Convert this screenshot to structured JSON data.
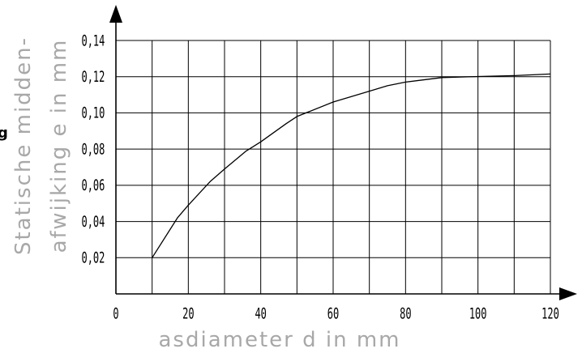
{
  "chart_data": {
    "type": "line",
    "title": "",
    "xlabel": "asdiameter d in mm",
    "ylabel_lines": [
      "Statische midden-",
      "afwijking e in mm"
    ],
    "x_ticks": [
      "0",
      "20",
      "40",
      "60",
      "80",
      "100",
      "120"
    ],
    "y_ticks": [
      "0,02",
      "0,04",
      "0,06",
      "0,08",
      "0,10",
      "0,12",
      "0,14"
    ],
    "xlim": [
      0,
      120
    ],
    "ylim": [
      0,
      0.14
    ],
    "grid": true,
    "series": [
      {
        "x": [
          10,
          17,
          20,
          26,
          30,
          36,
          40,
          47,
          50,
          60,
          70,
          75,
          80,
          90,
          100,
          110,
          120
        ],
        "y": [
          0.02,
          0.042,
          0.049,
          0.062,
          0.069,
          0.079,
          0.084,
          0.094,
          0.098,
          0.106,
          0.112,
          0.115,
          0.117,
          0.1195,
          0.1201,
          0.1206,
          0.1215
        ]
      }
    ]
  },
  "edge_mark": "g"
}
